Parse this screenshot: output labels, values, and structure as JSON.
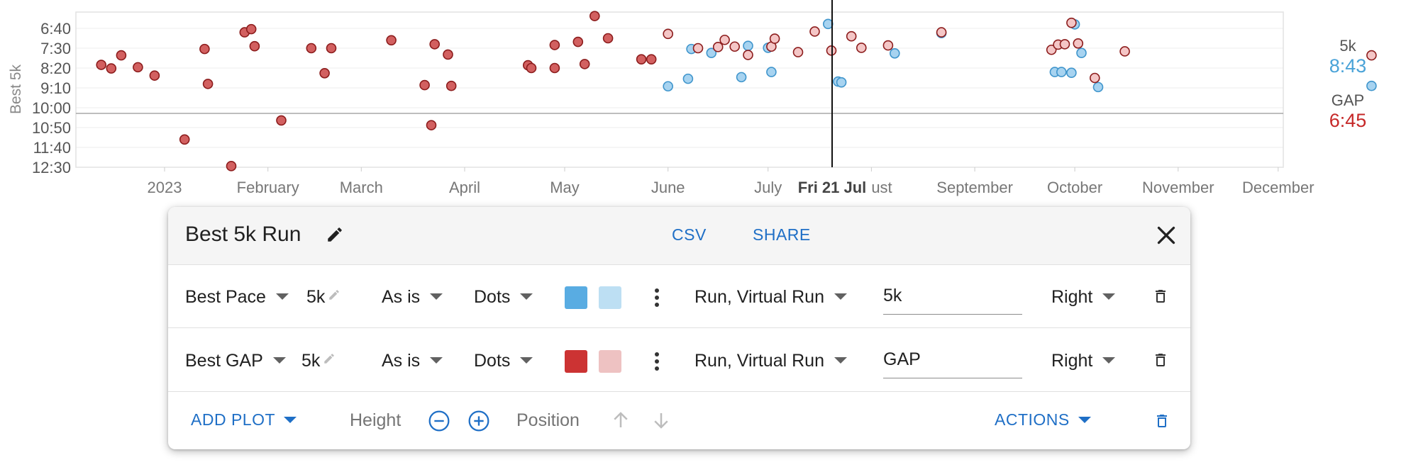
{
  "chart": {
    "ylabel": "Best 5k",
    "yticks": [
      "6:40",
      "7:30",
      "8:20",
      "9:10",
      "10:00",
      "10:50",
      "11:40",
      "12:30"
    ],
    "xticks": [
      "2023",
      "February",
      "March",
      "April",
      "May",
      "June",
      "July",
      "ust",
      "September",
      "October",
      "November",
      "December"
    ],
    "cursor_label": "Fri 21 Jul"
  },
  "chart_data": {
    "type": "scatter",
    "ylabel": "Best 5k",
    "y_unit": "pace min:sec",
    "y_inverted": true,
    "series": [
      {
        "name": "5k",
        "color": "#5aaee0",
        "points": [
          [
            "2023-06-01",
            "9:06"
          ],
          [
            "2023-06-07",
            "8:47"
          ],
          [
            "2023-06-08",
            "7:32"
          ],
          [
            "2023-06-14",
            "7:42"
          ],
          [
            "2023-06-23",
            "8:43"
          ],
          [
            "2023-06-25",
            "7:24"
          ],
          [
            "2023-07-01",
            "7:29"
          ],
          [
            "2023-07-02",
            "8:30"
          ],
          [
            "2023-07-19",
            "6:29"
          ],
          [
            "2023-07-22",
            "8:54"
          ],
          [
            "2023-07-23",
            "8:56"
          ],
          [
            "2023-08-08",
            "7:43"
          ],
          [
            "2023-08-22",
            "6:52"
          ],
          [
            "2023-09-25",
            "8:30"
          ],
          [
            "2023-09-27",
            "8:30"
          ],
          [
            "2023-09-30",
            "8:32"
          ],
          [
            "2023-10-01",
            "6:30"
          ],
          [
            "2023-10-03",
            "7:42"
          ],
          [
            "2023-10-08",
            "9:08"
          ],
          [
            "2023-12-29",
            "9:05"
          ]
        ]
      },
      {
        "name": "GAP",
        "color": "#c43838",
        "points": [
          [
            "2022-12-13",
            "8:12"
          ],
          [
            "2022-12-16",
            "8:21"
          ],
          [
            "2022-12-19",
            "7:48"
          ],
          [
            "2022-12-24",
            "8:18"
          ],
          [
            "2022-12-29",
            "8:39"
          ],
          [
            "2023-01-07",
            "11:20"
          ],
          [
            "2023-01-13",
            "7:32"
          ],
          [
            "2023-01-14",
            "9:00"
          ],
          [
            "2023-01-21",
            "12:27"
          ],
          [
            "2023-01-25",
            "6:50"
          ],
          [
            "2023-01-27",
            "6:42"
          ],
          [
            "2023-01-28",
            "7:25"
          ],
          [
            "2023-02-05",
            "10:32"
          ],
          [
            "2023-02-14",
            "7:30"
          ],
          [
            "2023-02-18",
            "8:33"
          ],
          [
            "2023-02-20",
            "7:30"
          ],
          [
            "2023-03-10",
            "7:10"
          ],
          [
            "2023-03-20",
            "9:03"
          ],
          [
            "2023-03-22",
            "10:44"
          ],
          [
            "2023-03-23",
            "7:20"
          ],
          [
            "2023-03-27",
            "7:46"
          ],
          [
            "2023-03-28",
            "9:05"
          ],
          [
            "2023-04-20",
            "8:13"
          ],
          [
            "2023-04-21",
            "8:20"
          ],
          [
            "2023-04-28",
            "8:20"
          ],
          [
            "2023-04-28",
            "7:22"
          ],
          [
            "2023-05-05",
            "7:14"
          ],
          [
            "2023-05-07",
            "8:10"
          ],
          [
            "2023-05-10",
            "6:09"
          ],
          [
            "2023-05-14",
            "7:05"
          ],
          [
            "2023-05-24",
            "7:58"
          ],
          [
            "2023-05-27",
            "7:58"
          ],
          [
            "2023-06-01",
            "6:54"
          ],
          [
            "2023-06-10",
            "7:30"
          ],
          [
            "2023-06-16",
            "7:27"
          ],
          [
            "2023-06-18",
            "7:09"
          ],
          [
            "2023-06-21",
            "7:26"
          ],
          [
            "2023-06-25",
            "7:47"
          ],
          [
            "2023-07-02",
            "7:26"
          ],
          [
            "2023-07-03",
            "7:06"
          ],
          [
            "2023-07-10",
            "7:40"
          ],
          [
            "2023-07-15",
            "6:48"
          ],
          [
            "2023-07-20",
            "7:36"
          ],
          [
            "2023-07-26",
            "7:00"
          ],
          [
            "2023-07-29",
            "7:29"
          ],
          [
            "2023-08-06",
            "7:23"
          ],
          [
            "2023-08-22",
            "6:50"
          ],
          [
            "2023-09-24",
            "7:34"
          ],
          [
            "2023-09-26",
            "7:21"
          ],
          [
            "2023-09-28",
            "7:20"
          ],
          [
            "2023-09-30",
            "6:26"
          ],
          [
            "2023-10-02",
            "7:18"
          ],
          [
            "2023-10-07",
            "8:45"
          ],
          [
            "2023-10-16",
            "7:38"
          ],
          [
            "2023-12-29",
            "7:48"
          ]
        ]
      }
    ]
  },
  "legend": [
    {
      "name": "5k",
      "value": "8:43",
      "color": "#4aa3d8"
    },
    {
      "name": "GAP",
      "value": "6:45",
      "color": "#c62828"
    }
  ],
  "panel": {
    "title": "Best 5k Run",
    "csv_label": "CSV",
    "share_label": "SHARE",
    "rows": [
      {
        "metric": "Best Pace",
        "distance": "5k",
        "transform": "As is",
        "style": "Dots",
        "color_main": "#59ace2",
        "color_light": "#bddff3",
        "activities": "Run, Virtual Run",
        "label": "5k",
        "axis": "Right"
      },
      {
        "metric": "Best GAP",
        "distance": "5k",
        "transform": "As is",
        "style": "Dots",
        "color_main": "#cc3333",
        "color_light": "#eec2c2",
        "activities": "Run, Virtual Run",
        "label": "GAP",
        "axis": "Right"
      }
    ],
    "footer": {
      "add_plot_label": "ADD PLOT",
      "height_label": "Height",
      "position_label": "Position",
      "actions_label": "ACTIONS"
    }
  }
}
